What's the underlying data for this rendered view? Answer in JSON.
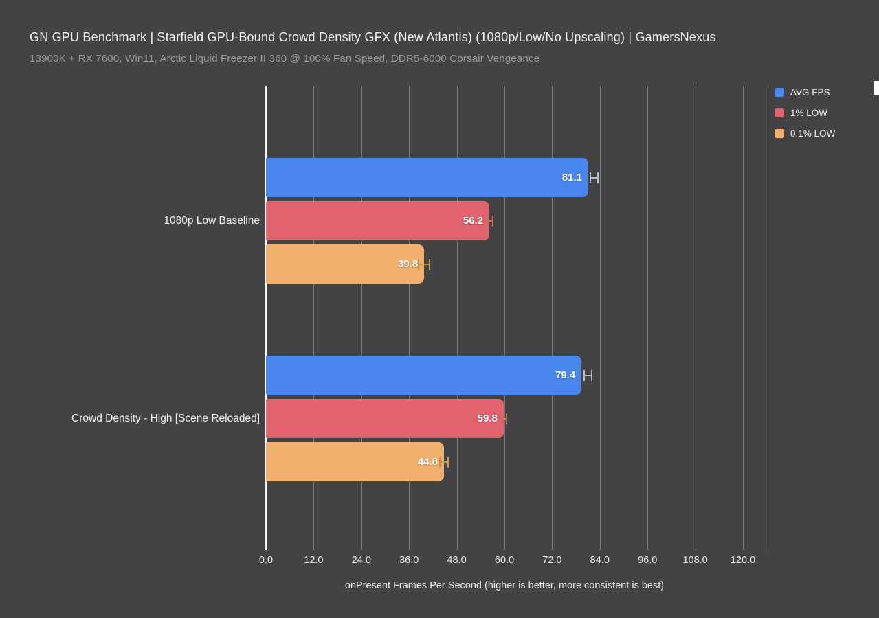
{
  "header": {
    "title": "GN GPU Benchmark | Starfield GPU-Bound Crowd Density GFX (New Atlantis) (1080p/Low/No Upscaling) | GamersNexus",
    "subtitle": "13900K + RX 7600, Win11, Arctic Liquid Freezer II 360 @ 100% Fan Speed, DDR5-6000 Corsair Vengeance"
  },
  "chart_data": {
    "type": "bar",
    "orientation": "horizontal",
    "title": "GN GPU Benchmark | Starfield GPU-Bound Crowd Density GFX (New Atlantis) (1080p/Low/No Upscaling) | GamersNexus",
    "subtitle": "13900K + RX 7600, Win11, Arctic Liquid Freezer II 360 @ 100% Fan Speed, DDR5-6000 Corsair Vengeance",
    "xlabel": "onPresent Frames Per Second (higher is better, more consistent is best)",
    "xlim": [
      0,
      126.4
    ],
    "grid": true,
    "legend_position": "top-right",
    "xticks": [
      {
        "label": "0.0",
        "value": 0
      },
      {
        "label": "12.0",
        "value": 12
      },
      {
        "label": "24.0",
        "value": 24
      },
      {
        "label": "36.0",
        "value": 36
      },
      {
        "label": "48.0",
        "value": 48
      },
      {
        "label": "60.0",
        "value": 60
      },
      {
        "label": "72.0",
        "value": 72
      },
      {
        "label": "84.0",
        "value": 84
      },
      {
        "label": "96.0",
        "value": 96
      },
      {
        "label": "108.0",
        "value": 108
      },
      {
        "label": "120.0",
        "value": 120
      }
    ],
    "categories": [
      "1080p Low Baseline",
      "Crowd Density - High [Scene Reloaded]"
    ],
    "series": [
      {
        "name": "AVG FPS",
        "color": "#4986ee",
        "whisker_color": "#b7bfcc",
        "values": [
          81.1,
          79.4
        ],
        "whiskers": [
          [
            81.4,
            83.7
          ],
          [
            79.8,
            82.1
          ]
        ]
      },
      {
        "name": "1% LOW",
        "color": "#e0636e",
        "whisker_color": "#cd6a60",
        "values": [
          56.2,
          59.8
        ],
        "whiskers": [
          [
            55.7,
            57.3
          ],
          [
            59.4,
            60.7
          ]
        ]
      },
      {
        "name": "0.1% LOW",
        "color": "#f2b06e",
        "whisker_color": "#c6973f",
        "values": [
          39.8,
          44.8
        ],
        "whiskers": [
          [
            38.2,
            41.3
          ],
          [
            43.6,
            46.0
          ]
        ]
      }
    ]
  },
  "colors": {
    "background": "#434346",
    "gridline": "#8c8c90",
    "axis_line": "#f5f5f5",
    "title": "#f1f1f1",
    "subtitle": "#9b9b9b",
    "tick_label": "#ebebeb",
    "bar_value_label": "#ffffff"
  }
}
